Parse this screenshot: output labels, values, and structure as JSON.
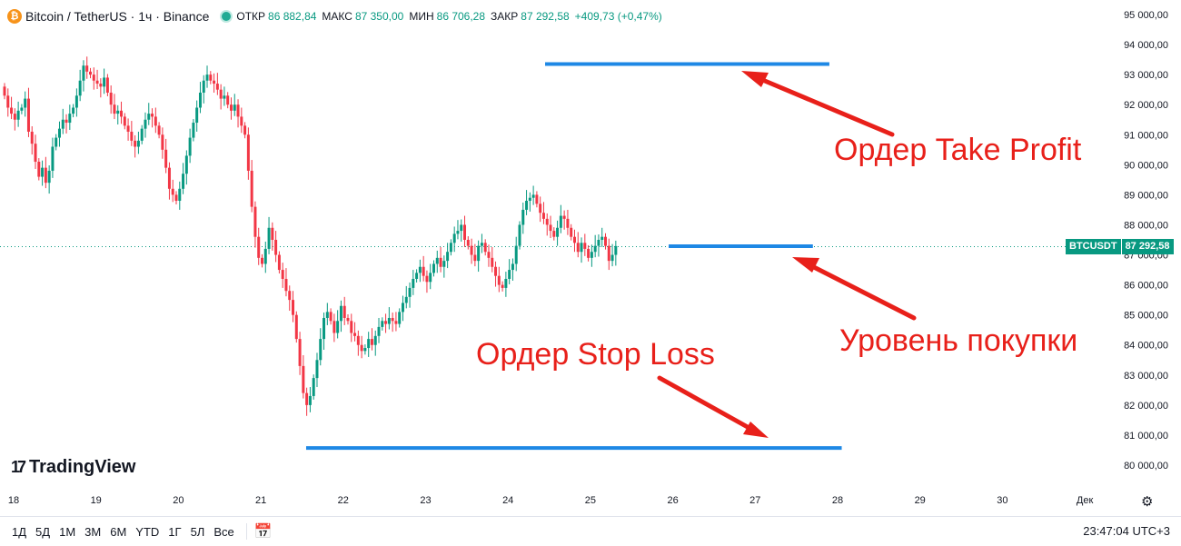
{
  "header": {
    "symbol": "Bitcoin / TetherUS · 1ч · Binance",
    "coin_icon": "₿",
    "ohlc": {
      "open_label": "ОТКР",
      "open": "86 882,84",
      "high_label": "МАКС",
      "high": "87 350,00",
      "low_label": "МИН",
      "low": "86 706,28",
      "close_label": "ЗАКР",
      "close": "87 292,58",
      "change": "+409,73 (+0,47%)"
    }
  },
  "price_tag": {
    "symbol": "BTCUSDT",
    "price": "87 292,58",
    "color": "#089981"
  },
  "annotations": {
    "take_profit": "Ордер Take Profit",
    "buy_level": "Уровень покупки",
    "stop_loss": "Ордер Stop Loss",
    "arrow_color": "#e8201a",
    "line_color": "#1e88e5"
  },
  "logo": "TradingView",
  "bottom_bar": {
    "ranges": [
      "1Д",
      "5Д",
      "1М",
      "3М",
      "6М",
      "YTD",
      "1Г",
      "5Л",
      "Все"
    ],
    "time": "23:47:04 UTC+3"
  },
  "chart_data": {
    "type": "candlestick",
    "y_axis_labels": [
      "95 000,00",
      "94 000,00",
      "93 000,00",
      "92 000,00",
      "91 000,00",
      "90 000,00",
      "89 000,00",
      "88 000,00",
      "87 000,00",
      "86 000,00",
      "85 000,00",
      "84 000,00",
      "83 000,00",
      "82 000,00",
      "81 000,00",
      "80 000,00"
    ],
    "ylim": [
      79600,
      95200
    ],
    "x_ticks": [
      "18",
      "19",
      "20",
      "21",
      "22",
      "23",
      "24",
      "25",
      "26",
      "27",
      "28",
      "29",
      "30",
      "Дек"
    ],
    "current_price": 87292.58,
    "levels": [
      {
        "name": "take_profit",
        "price": 93350,
        "x_from_day": 24.45,
        "x_to_day": 27.9
      },
      {
        "name": "buy",
        "price": 87290,
        "x_from_day": 25.95,
        "x_to_day": 27.7
      },
      {
        "name": "stop_loss",
        "price": 80570,
        "x_from_day": 21.55,
        "x_to_day": 28.05
      }
    ],
    "start_price": 92600,
    "closes": [
      92300,
      91900,
      91700,
      91500,
      91800,
      91900,
      92200,
      91100,
      90700,
      90100,
      89600,
      89900,
      89400,
      89800,
      90600,
      90900,
      91200,
      91500,
      91400,
      91700,
      91900,
      92300,
      92800,
      93300,
      93100,
      93000,
      92800,
      92700,
      92600,
      92900,
      92400,
      92000,
      91700,
      91800,
      91600,
      91300,
      91100,
      90800,
      90600,
      90800,
      91200,
      91500,
      91700,
      91600,
      91300,
      91000,
      90500,
      89900,
      89200,
      89000,
      88800,
      89200,
      89700,
      90300,
      90900,
      91400,
      91900,
      92400,
      92800,
      93000,
      92800,
      92700,
      92500,
      92200,
      92300,
      92000,
      91800,
      92000,
      91600,
      91300,
      91000,
      89800,
      88600,
      87600,
      86900,
      86700,
      87200,
      87900,
      87500,
      87000,
      86500,
      86200,
      85800,
      85500,
      85000,
      84200,
      83300,
      82400,
      82000,
      82300,
      82900,
      83500,
      84200,
      84900,
      85100,
      84800,
      84400,
      84800,
      85300,
      84900,
      84800,
      84400,
      84300,
      84000,
      83800,
      83900,
      84200,
      84000,
      84300,
      84600,
      84800,
      84700,
      84900,
      84800,
      84700,
      85100,
      85400,
      85600,
      85900,
      86200,
      86400,
      86600,
      86300,
      86100,
      86400,
      86700,
      86900,
      86600,
      86800,
      87100,
      87400,
      87700,
      87800,
      88000,
      87500,
      87300,
      87000,
      86800,
      87300,
      87400,
      87100,
      86900,
      86600,
      86300,
      86000,
      85900,
      86200,
      86500,
      86700,
      87300,
      88000,
      88500,
      88800,
      88900,
      89000,
      88700,
      88400,
      88200,
      88000,
      87800,
      87600,
      87900,
      88300,
      88200,
      87900,
      87600,
      87400,
      87100,
      87400,
      87200,
      86900,
      87100,
      87300,
      87500,
      87600,
      87300,
      86800,
      87000,
      87292.58
    ]
  }
}
